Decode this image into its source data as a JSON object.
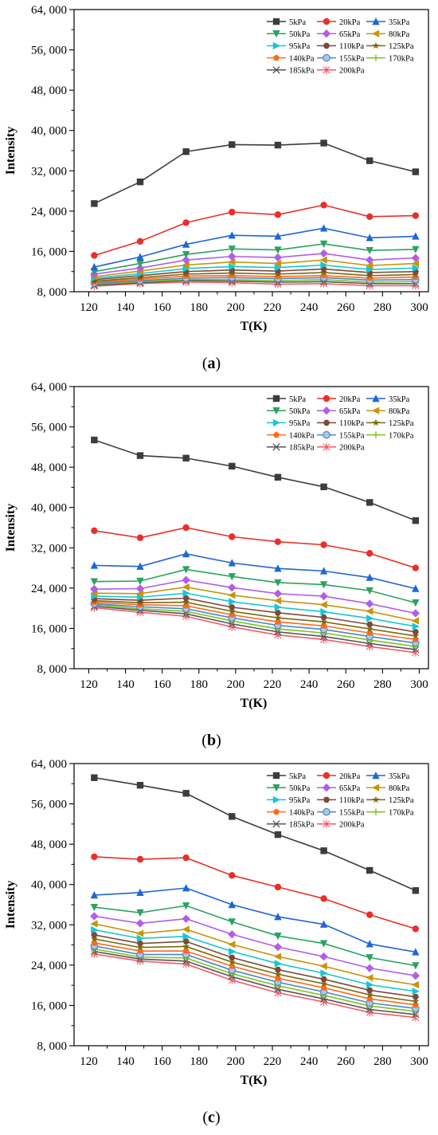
{
  "chart_data": [
    {
      "type": "line",
      "panel": "a",
      "caption": "a",
      "xlabel": "T(K)",
      "ylabel": "Intensity",
      "xlim": [
        112,
        305
      ],
      "ylim": [
        8000,
        64000
      ],
      "x_ticks": [
        120,
        140,
        160,
        180,
        200,
        220,
        240,
        260,
        280,
        300
      ],
      "y_ticks": [
        8000,
        16000,
        24000,
        32000,
        40000,
        48000,
        56000,
        64000
      ],
      "y_tick_labels": [
        "8, 000",
        "16, 000",
        "24, 000",
        "32, 000",
        "40, 000",
        "48, 000",
        "56, 000",
        "64, 000"
      ],
      "legend_position": "top-right",
      "x": [
        123,
        148,
        173,
        198,
        223,
        248,
        273,
        298
      ],
      "series": [
        {
          "name": "5kPa",
          "color": "#3c3c3c",
          "marker": "square",
          "values": [
            25500,
            29800,
            35800,
            37200,
            37100,
            37500,
            34000,
            31800
          ]
        },
        {
          "name": "20kPa",
          "color": "#e8302a",
          "marker": "circle",
          "values": [
            15200,
            18000,
            21700,
            23800,
            23300,
            25200,
            22900,
            23100
          ]
        },
        {
          "name": "35kPa",
          "color": "#1f66d6",
          "marker": "triangle-up",
          "values": [
            12900,
            14900,
            17400,
            19200,
            19000,
            20600,
            18700,
            19000
          ]
        },
        {
          "name": "50kPa",
          "color": "#2ca25f",
          "marker": "triangle-down",
          "values": [
            12000,
            13600,
            15400,
            16500,
            16300,
            17500,
            16200,
            16400
          ]
        },
        {
          "name": "65kPa",
          "color": "#b05ee8",
          "marker": "diamond",
          "values": [
            11500,
            12700,
            14300,
            15000,
            14800,
            15600,
            14300,
            14700
          ]
        },
        {
          "name": "80kPa",
          "color": "#c8940a",
          "marker": "triangle-left",
          "values": [
            11000,
            12100,
            13300,
            13900,
            13600,
            14300,
            13200,
            13600
          ]
        },
        {
          "name": "95kPa",
          "color": "#16c7d3",
          "marker": "triangle-right",
          "values": [
            10700,
            11600,
            12600,
            13000,
            12800,
            13300,
            12400,
            12700
          ]
        },
        {
          "name": "110kPa",
          "color": "#7b4a3a",
          "marker": "hexagon",
          "values": [
            10400,
            11200,
            12000,
            12300,
            12100,
            12500,
            11800,
            12000
          ]
        },
        {
          "name": "125kPa",
          "color": "#7a6a10",
          "marker": "star",
          "values": [
            10100,
            10800,
            11500,
            11700,
            11500,
            11800,
            11200,
            11400
          ]
        },
        {
          "name": "140kPa",
          "color": "#ff6a1a",
          "marker": "pentagon",
          "values": [
            9900,
            10500,
            11100,
            11200,
            11000,
            11200,
            10700,
            10900
          ]
        },
        {
          "name": "155kPa",
          "color": "#4a86c8",
          "marker": "circle-half",
          "values": [
            9700,
            10200,
            10700,
            10800,
            10600,
            10800,
            10300,
            10400
          ]
        },
        {
          "name": "170kPa",
          "color": "#7cc21e",
          "marker": "plus",
          "values": [
            9500,
            10000,
            10400,
            10400,
            10200,
            10400,
            9900,
            10000
          ]
        },
        {
          "name": "185kPa",
          "color": "#555555",
          "marker": "x",
          "values": [
            9300,
            9800,
            10200,
            10100,
            9900,
            10000,
            9600,
            9600
          ]
        },
        {
          "name": "200kPa",
          "color": "#f25a6a",
          "marker": "asterisk",
          "values": [
            9100,
            9600,
            9900,
            9800,
            9500,
            9600,
            9200,
            9200
          ]
        }
      ]
    },
    {
      "type": "line",
      "panel": "b",
      "caption": "b",
      "xlabel": "T(K)",
      "ylabel": "Intensity",
      "xlim": [
        112,
        305
      ],
      "ylim": [
        8000,
        64000
      ],
      "x_ticks": [
        120,
        140,
        160,
        180,
        200,
        220,
        240,
        260,
        280,
        300
      ],
      "y_ticks": [
        8000,
        16000,
        24000,
        32000,
        40000,
        48000,
        56000,
        64000
      ],
      "y_tick_labels": [
        "8, 000",
        "16, 000",
        "24, 000",
        "32, 000",
        "40, 000",
        "48, 000",
        "56, 000",
        "64, 000"
      ],
      "legend_position": "top-right",
      "x": [
        123,
        148,
        173,
        198,
        223,
        248,
        273,
        298
      ],
      "series": [
        {
          "name": "5kPa",
          "color": "#3c3c3c",
          "marker": "square",
          "values": [
            53400,
            50300,
            49800,
            48200,
            46000,
            44100,
            41000,
            37400
          ]
        },
        {
          "name": "20kPa",
          "color": "#e8302a",
          "marker": "circle",
          "values": [
            35400,
            34000,
            36000,
            34200,
            33200,
            32600,
            30900,
            28000
          ]
        },
        {
          "name": "35kPa",
          "color": "#1f66d6",
          "marker": "triangle-up",
          "values": [
            28500,
            28300,
            30800,
            29000,
            27900,
            27400,
            26100,
            23900
          ]
        },
        {
          "name": "50kPa",
          "color": "#2ca25f",
          "marker": "triangle-down",
          "values": [
            25300,
            25400,
            27700,
            26300,
            25100,
            24700,
            23500,
            21100
          ]
        },
        {
          "name": "65kPa",
          "color": "#b05ee8",
          "marker": "diamond",
          "values": [
            23800,
            23900,
            25600,
            24100,
            22900,
            22400,
            20900,
            19000
          ]
        },
        {
          "name": "80kPa",
          "color": "#c8940a",
          "marker": "triangle-left",
          "values": [
            23000,
            22900,
            24200,
            22600,
            21500,
            20700,
            19400,
            17500
          ]
        },
        {
          "name": "95kPa",
          "color": "#16c7d3",
          "marker": "triangle-right",
          "values": [
            22400,
            22200,
            23000,
            21300,
            20200,
            19300,
            18000,
            16400
          ]
        },
        {
          "name": "110kPa",
          "color": "#7b4a3a",
          "marker": "hexagon",
          "values": [
            21900,
            21600,
            22000,
            20200,
            19100,
            18200,
            16800,
            15300
          ]
        },
        {
          "name": "125kPa",
          "color": "#7a6a10",
          "marker": "star",
          "values": [
            21500,
            21100,
            21200,
            19400,
            18100,
            17300,
            15900,
            14500
          ]
        },
        {
          "name": "140kPa",
          "color": "#ff6a1a",
          "marker": "pentagon",
          "values": [
            21200,
            20700,
            20500,
            18700,
            17300,
            16500,
            15100,
            13800
          ]
        },
        {
          "name": "155kPa",
          "color": "#4a86c8",
          "marker": "circle-half",
          "values": [
            20900,
            20300,
            19900,
            18100,
            16600,
            15800,
            14400,
            13100
          ]
        },
        {
          "name": "170kPa",
          "color": "#7cc21e",
          "marker": "plus",
          "values": [
            20700,
            19900,
            19400,
            17500,
            15900,
            15100,
            13700,
            12400
          ]
        },
        {
          "name": "185kPa",
          "color": "#555555",
          "marker": "x",
          "values": [
            20400,
            19600,
            18900,
            16900,
            15300,
            14400,
            13000,
            11800
          ]
        },
        {
          "name": "200kPa",
          "color": "#f25a6a",
          "marker": "asterisk",
          "values": [
            20100,
            19200,
            18400,
            16300,
            14700,
            13800,
            12400,
            11200
          ]
        }
      ]
    },
    {
      "type": "line",
      "panel": "c",
      "caption": "c",
      "xlabel": "T(K)",
      "ylabel": "Intensity",
      "xlim": [
        112,
        305
      ],
      "ylim": [
        8000,
        64000
      ],
      "x_ticks": [
        120,
        140,
        160,
        180,
        200,
        220,
        240,
        260,
        280,
        300
      ],
      "y_ticks": [
        8000,
        16000,
        24000,
        32000,
        40000,
        48000,
        56000,
        64000
      ],
      "y_tick_labels": [
        "8, 000",
        "16, 000",
        "24, 000",
        "32, 000",
        "40, 000",
        "48, 000",
        "56, 000",
        "64, 000"
      ],
      "legend_position": "top-right",
      "x": [
        123,
        148,
        173,
        198,
        223,
        248,
        273,
        298
      ],
      "series": [
        {
          "name": "5kPa",
          "color": "#3c3c3c",
          "marker": "square",
          "values": [
            61200,
            59700,
            58100,
            53500,
            49900,
            46700,
            42800,
            38800
          ]
        },
        {
          "name": "20kPa",
          "color": "#e8302a",
          "marker": "circle",
          "values": [
            45500,
            45000,
            45300,
            41800,
            39500,
            37200,
            34000,
            31200
          ]
        },
        {
          "name": "35kPa",
          "color": "#1f66d6",
          "marker": "triangle-up",
          "values": [
            37900,
            38400,
            39300,
            36000,
            33600,
            32100,
            28200,
            26600
          ]
        },
        {
          "name": "50kPa",
          "color": "#2ca25f",
          "marker": "triangle-down",
          "values": [
            35500,
            34400,
            35800,
            32600,
            29800,
            28300,
            25500,
            23900
          ]
        },
        {
          "name": "65kPa",
          "color": "#b05ee8",
          "marker": "diamond",
          "values": [
            33700,
            32300,
            33200,
            30100,
            27600,
            25700,
            23400,
            21900
          ]
        },
        {
          "name": "80kPa",
          "color": "#c8940a",
          "marker": "triangle-left",
          "values": [
            32200,
            30300,
            31100,
            28100,
            25700,
            23800,
            21500,
            20100
          ]
        },
        {
          "name": "95kPa",
          "color": "#16c7d3",
          "marker": "triangle-right",
          "values": [
            31000,
            29300,
            29700,
            26700,
            24300,
            22400,
            20100,
            18800
          ]
        },
        {
          "name": "110kPa",
          "color": "#7b4a3a",
          "marker": "hexagon",
          "values": [
            30000,
            28300,
            28700,
            25500,
            23100,
            21200,
            19000,
            17700
          ]
        },
        {
          "name": "125kPa",
          "color": "#7a6a10",
          "marker": "star",
          "values": [
            29200,
            27500,
            27700,
            24600,
            22200,
            20300,
            18100,
            16800
          ]
        },
        {
          "name": "140kPa",
          "color": "#ff6a1a",
          "marker": "pentagon",
          "values": [
            28400,
            26800,
            26800,
            23800,
            21400,
            19500,
            17300,
            16100
          ]
        },
        {
          "name": "155kPa",
          "color": "#4a86c8",
          "marker": "circle-half",
          "values": [
            27800,
            26100,
            26100,
            23000,
            20600,
            18700,
            16500,
            15400
          ]
        },
        {
          "name": "170kPa",
          "color": "#7cc21e",
          "marker": "plus",
          "values": [
            27200,
            25600,
            25400,
            22300,
            19900,
            18000,
            15900,
            14800
          ]
        },
        {
          "name": "185kPa",
          "color": "#555555",
          "marker": "x",
          "values": [
            26700,
            25200,
            24800,
            21700,
            19200,
            17300,
            15200,
            14200
          ]
        },
        {
          "name": "200kPa",
          "color": "#f25a6a",
          "marker": "asterisk",
          "values": [
            26200,
            24800,
            24200,
            21000,
            18500,
            16700,
            14600,
            13600
          ]
        }
      ]
    }
  ]
}
